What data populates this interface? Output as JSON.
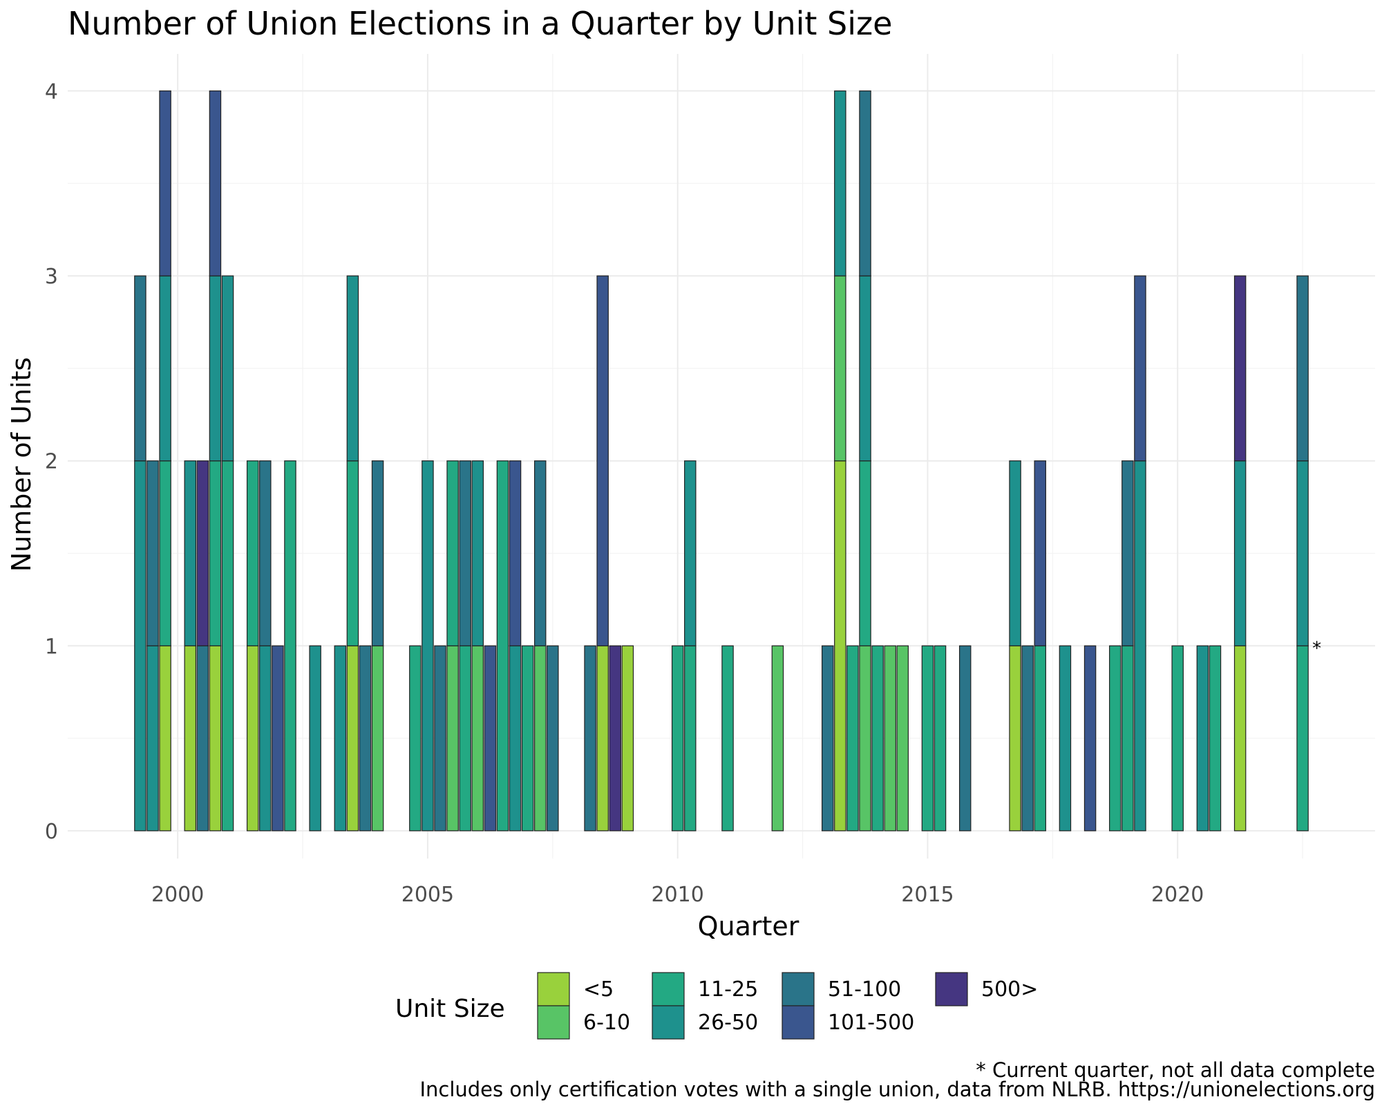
{
  "chart_data": {
    "type": "bar",
    "stacked": true,
    "title": "Number of Union Elections in a Quarter by Unit Size",
    "xlabel": "Quarter",
    "ylabel": "Number of Units",
    "xlim": [
      1997.8,
      2023.95
    ],
    "ylim": [
      -0.15,
      4.2
    ],
    "x_ticks": [
      2000,
      2005,
      2010,
      2015,
      2020
    ],
    "x_tick_labels": [
      "2000",
      "2005",
      "2010",
      "2015",
      "2020"
    ],
    "y_ticks": [
      0,
      1,
      2,
      3,
      4
    ],
    "y_tick_labels": [
      "0",
      "1",
      "2",
      "3",
      "4"
    ],
    "grid": true,
    "legend": {
      "title": "Unit Size",
      "position": "bottom",
      "entries": [
        {
          "name": "<5",
          "color": "#99d13c"
        },
        {
          "name": "6-10",
          "color": "#58c466"
        },
        {
          "name": "11-25",
          "color": "#23a983"
        },
        {
          "name": "26-50",
          "color": "#1e918d"
        },
        {
          "name": "51-100",
          "color": "#2a7489"
        },
        {
          "name": "101-500",
          "color": "#3a568e"
        },
        {
          "name": "500>",
          "color": "#453681"
        }
      ]
    },
    "series_names": [
      "<5",
      "6-10",
      "11-25",
      "26-50",
      "51-100",
      "101-500",
      "500>"
    ],
    "bars": [
      {
        "x": 1999.25,
        "counts": [
          0,
          0,
          0,
          2,
          1,
          0,
          0
        ]
      },
      {
        "x": 1999.5,
        "counts": [
          0,
          0,
          0,
          1,
          1,
          0,
          0
        ]
      },
      {
        "x": 1999.75,
        "counts": [
          1,
          0,
          1,
          1,
          0,
          1,
          0
        ]
      },
      {
        "x": 2000.25,
        "counts": [
          1,
          0,
          0,
          1,
          0,
          0,
          0
        ]
      },
      {
        "x": 2000.5,
        "counts": [
          0,
          0,
          0,
          0,
          1,
          0,
          1
        ]
      },
      {
        "x": 2000.75,
        "counts": [
          1,
          0,
          1,
          1,
          0,
          1,
          0
        ]
      },
      {
        "x": 2001.0,
        "counts": [
          0,
          0,
          2,
          1,
          0,
          0,
          0
        ]
      },
      {
        "x": 2001.5,
        "counts": [
          1,
          0,
          1,
          0,
          0,
          0,
          0
        ]
      },
      {
        "x": 2001.75,
        "counts": [
          0,
          0,
          0,
          1,
          1,
          0,
          0
        ]
      },
      {
        "x": 2002.0,
        "counts": [
          0,
          0,
          0,
          0,
          0,
          1,
          0
        ]
      },
      {
        "x": 2002.25,
        "counts": [
          0,
          0,
          2,
          0,
          0,
          0,
          0
        ]
      },
      {
        "x": 2002.75,
        "counts": [
          0,
          0,
          0,
          1,
          0,
          0,
          0
        ]
      },
      {
        "x": 2003.25,
        "counts": [
          0,
          0,
          0,
          1,
          0,
          0,
          0
        ]
      },
      {
        "x": 2003.5,
        "counts": [
          1,
          0,
          1,
          1,
          0,
          0,
          0
        ]
      },
      {
        "x": 2003.75,
        "counts": [
          0,
          0,
          0,
          0,
          1,
          0,
          0
        ]
      },
      {
        "x": 2004.0,
        "counts": [
          0,
          1,
          0,
          0,
          1,
          0,
          0
        ]
      },
      {
        "x": 2004.75,
        "counts": [
          0,
          0,
          1,
          0,
          0,
          0,
          0
        ]
      },
      {
        "x": 2005.0,
        "counts": [
          0,
          0,
          0,
          2,
          0,
          0,
          0
        ]
      },
      {
        "x": 2005.25,
        "counts": [
          0,
          0,
          0,
          0,
          1,
          0,
          0
        ]
      },
      {
        "x": 2005.5,
        "counts": [
          0,
          1,
          1,
          0,
          0,
          0,
          0
        ]
      },
      {
        "x": 2005.75,
        "counts": [
          0,
          0,
          1,
          0,
          1,
          0,
          0
        ]
      },
      {
        "x": 2006.0,
        "counts": [
          0,
          1,
          0,
          1,
          0,
          0,
          0
        ]
      },
      {
        "x": 2006.25,
        "counts": [
          0,
          0,
          0,
          0,
          0,
          1,
          0
        ]
      },
      {
        "x": 2006.5,
        "counts": [
          0,
          0,
          2,
          0,
          0,
          0,
          0
        ]
      },
      {
        "x": 2006.75,
        "counts": [
          0,
          0,
          0,
          1,
          0,
          1,
          0
        ]
      },
      {
        "x": 2007.0,
        "counts": [
          0,
          0,
          1,
          0,
          0,
          0,
          0
        ]
      },
      {
        "x": 2007.25,
        "counts": [
          0,
          1,
          0,
          0,
          1,
          0,
          0
        ]
      },
      {
        "x": 2007.5,
        "counts": [
          0,
          0,
          0,
          0,
          1,
          0,
          0
        ]
      },
      {
        "x": 2008.25,
        "counts": [
          0,
          0,
          0,
          0,
          1,
          0,
          0
        ]
      },
      {
        "x": 2008.5,
        "counts": [
          1,
          0,
          0,
          0,
          0,
          2,
          0
        ]
      },
      {
        "x": 2008.75,
        "counts": [
          0,
          0,
          0,
          0,
          0,
          0,
          1
        ]
      },
      {
        "x": 2009.0,
        "counts": [
          1,
          0,
          0,
          0,
          0,
          0,
          0
        ]
      },
      {
        "x": 2010.0,
        "counts": [
          0,
          0,
          1,
          0,
          0,
          0,
          0
        ]
      },
      {
        "x": 2010.25,
        "counts": [
          0,
          0,
          1,
          1,
          0,
          0,
          0
        ]
      },
      {
        "x": 2011.0,
        "counts": [
          0,
          0,
          1,
          0,
          0,
          0,
          0
        ]
      },
      {
        "x": 2012.0,
        "counts": [
          0,
          1,
          0,
          0,
          0,
          0,
          0
        ]
      },
      {
        "x": 2013.0,
        "counts": [
          0,
          0,
          0,
          0,
          1,
          0,
          0
        ]
      },
      {
        "x": 2013.25,
        "counts": [
          2,
          1,
          0,
          1,
          0,
          0,
          0
        ]
      },
      {
        "x": 2013.5,
        "counts": [
          0,
          0,
          1,
          0,
          0,
          0,
          0
        ]
      },
      {
        "x": 2013.75,
        "counts": [
          0,
          1,
          1,
          1,
          1,
          0,
          0
        ]
      },
      {
        "x": 2014.0,
        "counts": [
          0,
          0,
          1,
          0,
          0,
          0,
          0
        ]
      },
      {
        "x": 2014.25,
        "counts": [
          0,
          1,
          0,
          0,
          0,
          0,
          0
        ]
      },
      {
        "x": 2014.5,
        "counts": [
          0,
          1,
          0,
          0,
          0,
          0,
          0
        ]
      },
      {
        "x": 2015.0,
        "counts": [
          0,
          0,
          1,
          0,
          0,
          0,
          0
        ]
      },
      {
        "x": 2015.25,
        "counts": [
          0,
          0,
          1,
          0,
          0,
          0,
          0
        ]
      },
      {
        "x": 2015.75,
        "counts": [
          0,
          0,
          0,
          0,
          1,
          0,
          0
        ]
      },
      {
        "x": 2016.75,
        "counts": [
          1,
          0,
          0,
          1,
          0,
          0,
          0
        ]
      },
      {
        "x": 2017.0,
        "counts": [
          0,
          0,
          0,
          0,
          1,
          0,
          0
        ]
      },
      {
        "x": 2017.25,
        "counts": [
          0,
          0,
          1,
          0,
          0,
          1,
          0
        ]
      },
      {
        "x": 2017.75,
        "counts": [
          0,
          0,
          0,
          1,
          0,
          0,
          0
        ]
      },
      {
        "x": 2018.25,
        "counts": [
          0,
          0,
          0,
          0,
          0,
          1,
          0
        ]
      },
      {
        "x": 2018.75,
        "counts": [
          0,
          0,
          1,
          0,
          0,
          0,
          0
        ]
      },
      {
        "x": 2019.0,
        "counts": [
          0,
          0,
          1,
          0,
          1,
          0,
          0
        ]
      },
      {
        "x": 2019.25,
        "counts": [
          0,
          0,
          0,
          2,
          0,
          1,
          0
        ]
      },
      {
        "x": 2020.0,
        "counts": [
          0,
          0,
          1,
          0,
          0,
          0,
          0
        ]
      },
      {
        "x": 2020.5,
        "counts": [
          0,
          0,
          0,
          1,
          0,
          0,
          0
        ]
      },
      {
        "x": 2020.75,
        "counts": [
          0,
          0,
          1,
          0,
          0,
          0,
          0
        ]
      },
      {
        "x": 2021.25,
        "counts": [
          1,
          0,
          0,
          1,
          0,
          0,
          1
        ]
      },
      {
        "x": 2022.5,
        "counts": [
          0,
          0,
          1,
          1,
          1,
          0,
          0
        ]
      }
    ],
    "annotations": [
      {
        "text": "*",
        "x": 2022.5,
        "y": 1
      }
    ],
    "notes": [
      "* Current quarter, not all data complete",
      "Includes only certification votes with a single union, data from NLRB. https://unionelections.org"
    ]
  }
}
